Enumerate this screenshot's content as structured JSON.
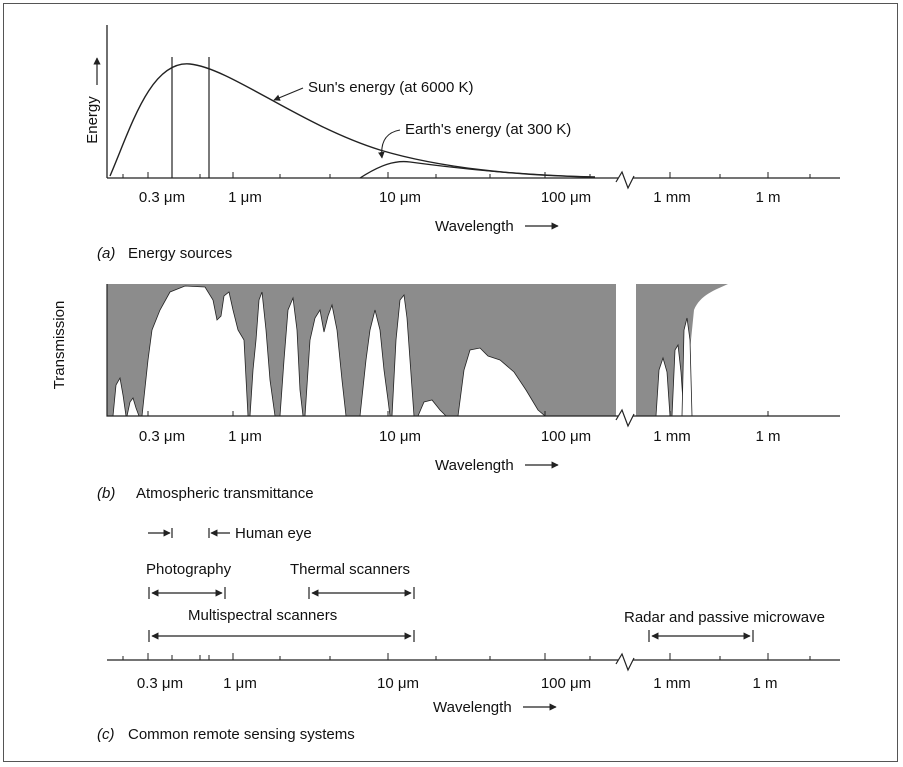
{
  "panel_a": {
    "y_label": "Energy",
    "sun_label": "Sun's energy (at 6000 K)",
    "earth_label": "Earth's energy (at 300 K)",
    "caption_letter": "(a)",
    "caption_text": "Energy sources",
    "x_label": "Wavelength"
  },
  "panel_b": {
    "y_label": "Transmission",
    "caption_letter": "(b)",
    "caption_text": "Atmospheric transmittance",
    "x_label": "Wavelength"
  },
  "panel_c": {
    "caption_letter": "(c)",
    "caption_text": "Common remote sensing systems",
    "x_label": "Wavelength",
    "systems": {
      "human_eye": "Human eye",
      "photography": "Photography",
      "thermal": "Thermal scanners",
      "multispectral": "Multispectral scanners",
      "radar": "Radar and passive microwave"
    }
  },
  "ticks": {
    "t1": "0.3 μm",
    "t2": "1 μm",
    "t3": "10 μm",
    "t4": "100 μm",
    "t5": "1 mm",
    "t6": "1 m"
  },
  "colors": {
    "absorption_fill": "#8c8c8c",
    "ink": "#222222"
  }
}
